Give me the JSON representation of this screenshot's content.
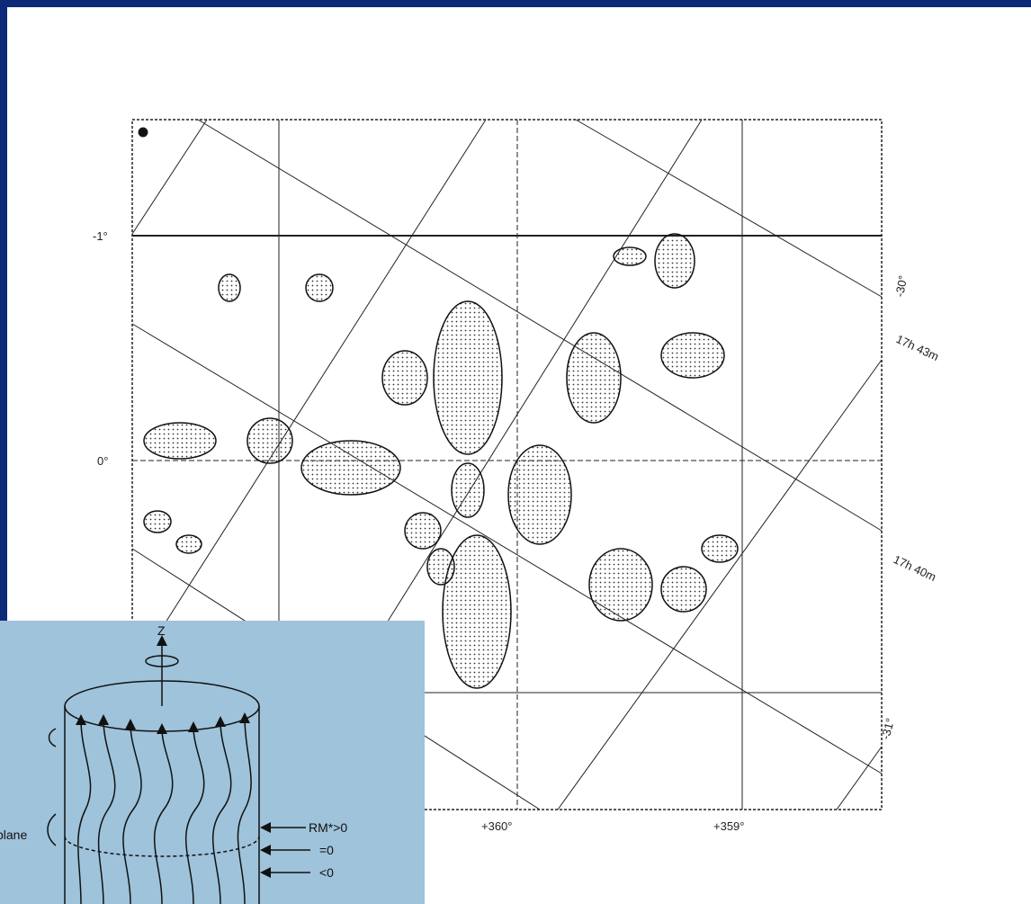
{
  "map": {
    "labels": [
      "-1°",
      "0°",
      "-30°",
      "17h 43m",
      "17h 40m",
      "-31°",
      "+360°",
      "+359°"
    ]
  },
  "inset": {
    "axis_label": "Z",
    "side_label": "plane",
    "rm_labels": [
      "RM*>0",
      "=0",
      "<0"
    ]
  }
}
